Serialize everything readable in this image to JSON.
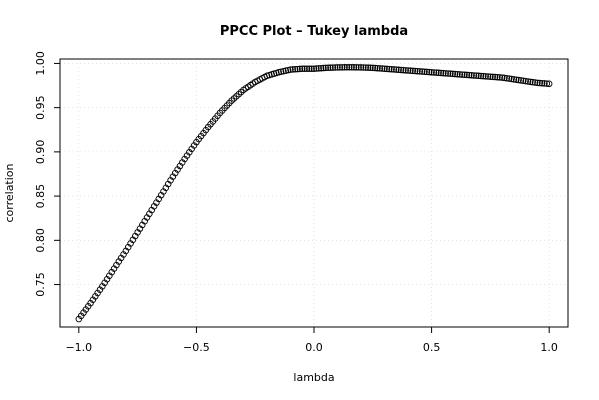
{
  "chart_data": {
    "type": "scatter",
    "title": "PPCC Plot – Tukey lambda",
    "xlabel": "lambda",
    "ylabel": "correlation",
    "xlim": [
      -1.08,
      1.08
    ],
    "ylim": [
      0.702,
      1.005
    ],
    "x_ticks": [
      -1.0,
      -0.5,
      0.0,
      0.5,
      1.0
    ],
    "x_tick_labels": [
      "−1.0",
      "−0.5",
      "0.0",
      "0.5",
      "1.0"
    ],
    "y_ticks": [
      0.75,
      0.8,
      0.85,
      0.9,
      0.95,
      1.0
    ],
    "y_tick_labels": [
      "0.75",
      "0.80",
      "0.85",
      "0.90",
      "0.95",
      "1.00"
    ],
    "grid": true,
    "series": [
      {
        "marker": "open-circle",
        "color": "#000000",
        "x": [
          -1.0,
          -0.95,
          -0.9,
          -0.85,
          -0.8,
          -0.75,
          -0.7,
          -0.65,
          -0.6,
          -0.55,
          -0.5,
          -0.45,
          -0.4,
          -0.35,
          -0.3,
          -0.25,
          -0.2,
          -0.15,
          -0.1,
          -0.05,
          0.0,
          0.05,
          0.1,
          0.15,
          0.2,
          0.25,
          0.3,
          0.35,
          0.4,
          0.45,
          0.5,
          0.55,
          0.6,
          0.65,
          0.7,
          0.75,
          0.8,
          0.85,
          0.9,
          0.95,
          1.0
        ],
        "y": [
          0.711,
          0.729,
          0.748,
          0.768,
          0.788,
          0.809,
          0.83,
          0.851,
          0.872,
          0.892,
          0.911,
          0.928,
          0.944,
          0.958,
          0.97,
          0.979,
          0.986,
          0.99,
          0.993,
          0.994,
          0.994,
          0.995,
          0.9955,
          0.9957,
          0.9955,
          0.995,
          0.994,
          0.993,
          0.992,
          0.991,
          0.99,
          0.989,
          0.988,
          0.987,
          0.986,
          0.985,
          0.984,
          0.982,
          0.98,
          0.978,
          0.977
        ]
      }
    ]
  }
}
